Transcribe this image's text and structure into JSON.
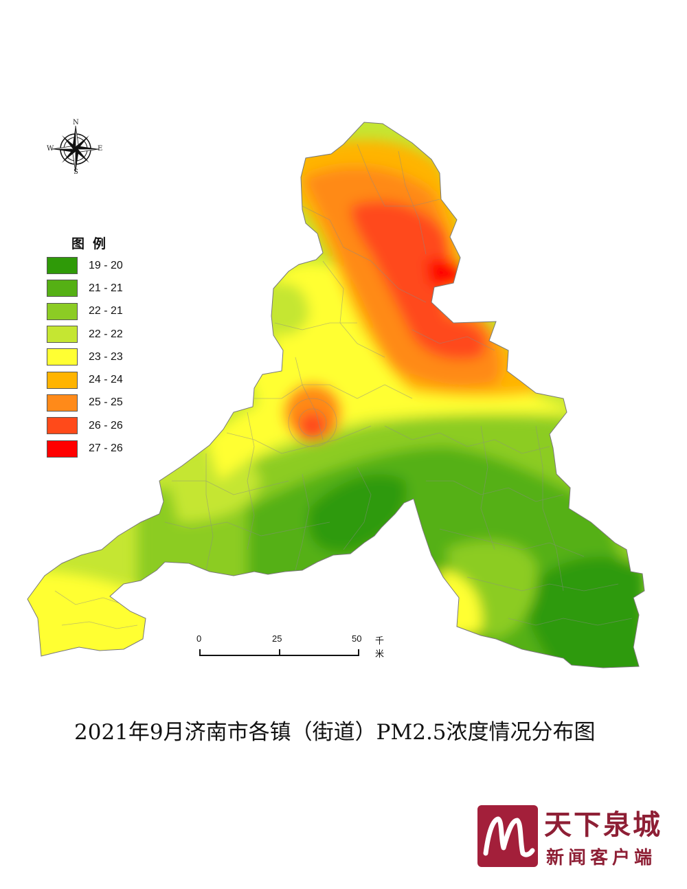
{
  "compass": {
    "north": "N",
    "south": "S",
    "east": "E",
    "west": "W"
  },
  "legend": {
    "title": "图例",
    "items": [
      {
        "label": "19 - 20",
        "color": "#2f9a08"
      },
      {
        "label": "21 - 21",
        "color": "#55b014"
      },
      {
        "label": "22 - 21",
        "color": "#8ccc24"
      },
      {
        "label": "22 - 22",
        "color": "#c5e632"
      },
      {
        "label": "23 - 23",
        "color": "#ffff33"
      },
      {
        "label": "24 - 24",
        "color": "#ffb400"
      },
      {
        "label": "25 - 25",
        "color": "#ff8a19"
      },
      {
        "label": "26 - 26",
        "color": "#ff4a1a"
      },
      {
        "label": "27 - 26",
        "color": "#ff0000"
      }
    ]
  },
  "scale_bar": {
    "ticks": [
      "0",
      "25",
      "50"
    ],
    "unit": "千米"
  },
  "title": "2021年9月济南市各镇（街道）PM2.5浓度情况分布图",
  "branding": {
    "name": "天下泉城",
    "subtitle": "新闻客户端"
  }
}
